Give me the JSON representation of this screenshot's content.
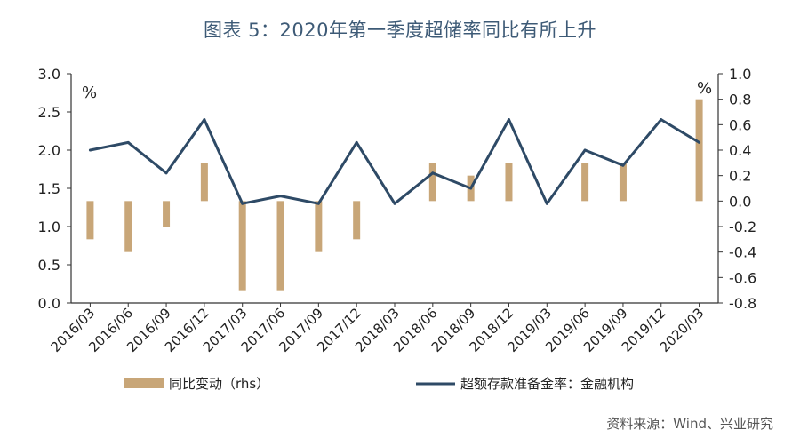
{
  "chart_data": {
    "type": "bar+line",
    "title": "图表 5：2020年第一季度超储率同比有所上升",
    "categories": [
      "2016/03",
      "2016/06",
      "2016/09",
      "2016/12",
      "2017/03",
      "2017/06",
      "2017/09",
      "2017/12",
      "2018/03",
      "2018/06",
      "2018/09",
      "2018/12",
      "2019/03",
      "2019/06",
      "2019/09",
      "2019/12",
      "2020/03"
    ],
    "series": [
      {
        "name": "同比变动（rhs）",
        "kind": "bar",
        "axis": "right",
        "color": "#c8a678",
        "values": [
          -0.3,
          -0.4,
          -0.2,
          0.3,
          -0.7,
          -0.7,
          -0.4,
          -0.3,
          null,
          0.3,
          0.2,
          0.3,
          null,
          0.3,
          0.3,
          null,
          0.8
        ]
      },
      {
        "name": "超额存款准备金率：金融机构",
        "kind": "line",
        "axis": "left",
        "color": "#2e4a66",
        "values": [
          2.0,
          2.1,
          1.7,
          2.4,
          1.3,
          1.4,
          1.3,
          2.1,
          1.3,
          1.7,
          1.5,
          2.4,
          1.3,
          2.0,
          1.8,
          2.4,
          2.1
        ]
      }
    ],
    "y_left": {
      "min": 0,
      "max": 3,
      "step": 0.5,
      "unit": "%"
    },
    "y_right": {
      "min": -0.8,
      "max": 1.0,
      "step": 0.2,
      "unit": "%"
    },
    "left_ticks": [
      "0.0",
      "0.5",
      "1.0",
      "1.5",
      "2.0",
      "2.5",
      "3.0"
    ],
    "right_ticks": [
      "-0.8",
      "-0.6",
      "-0.4",
      "-0.2",
      "0.0",
      "0.2",
      "0.4",
      "0.6",
      "0.8",
      "1.0"
    ],
    "legend_position": "bottom",
    "grid": false,
    "source": "资料来源：Wind、兴业研究"
  }
}
